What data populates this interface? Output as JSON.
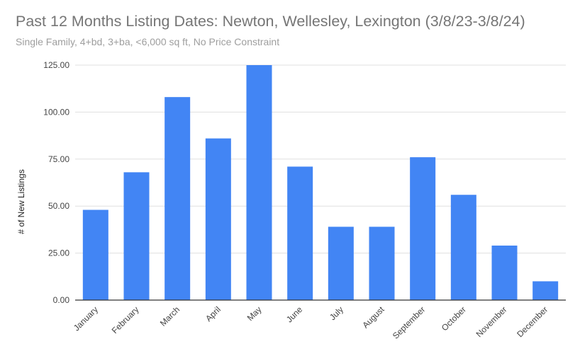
{
  "chart_data": {
    "type": "bar",
    "title": "Past 12 Months Listing Dates: Newton, Wellesley, Lexington (3/8/23-3/8/24)",
    "subtitle": "Single Family, 4+bd, 3+ba, <6,000 sq ft, No Price Constraint",
    "xlabel": "",
    "ylabel": "# of New Listings",
    "categories": [
      "January",
      "February",
      "March",
      "April",
      "May",
      "June",
      "July",
      "August",
      "September",
      "October",
      "November",
      "December"
    ],
    "values": [
      48,
      68,
      108,
      86,
      125,
      71,
      39,
      39,
      76,
      56,
      29,
      10
    ],
    "ylim": [
      0,
      125
    ],
    "yticks": [
      0,
      25,
      50,
      75,
      100,
      125
    ],
    "ytick_labels": [
      "0.00",
      "25.00",
      "50.00",
      "75.00",
      "100.00",
      "125.00"
    ],
    "bar_color": "#4285f4",
    "grid": true,
    "legend": "none"
  }
}
